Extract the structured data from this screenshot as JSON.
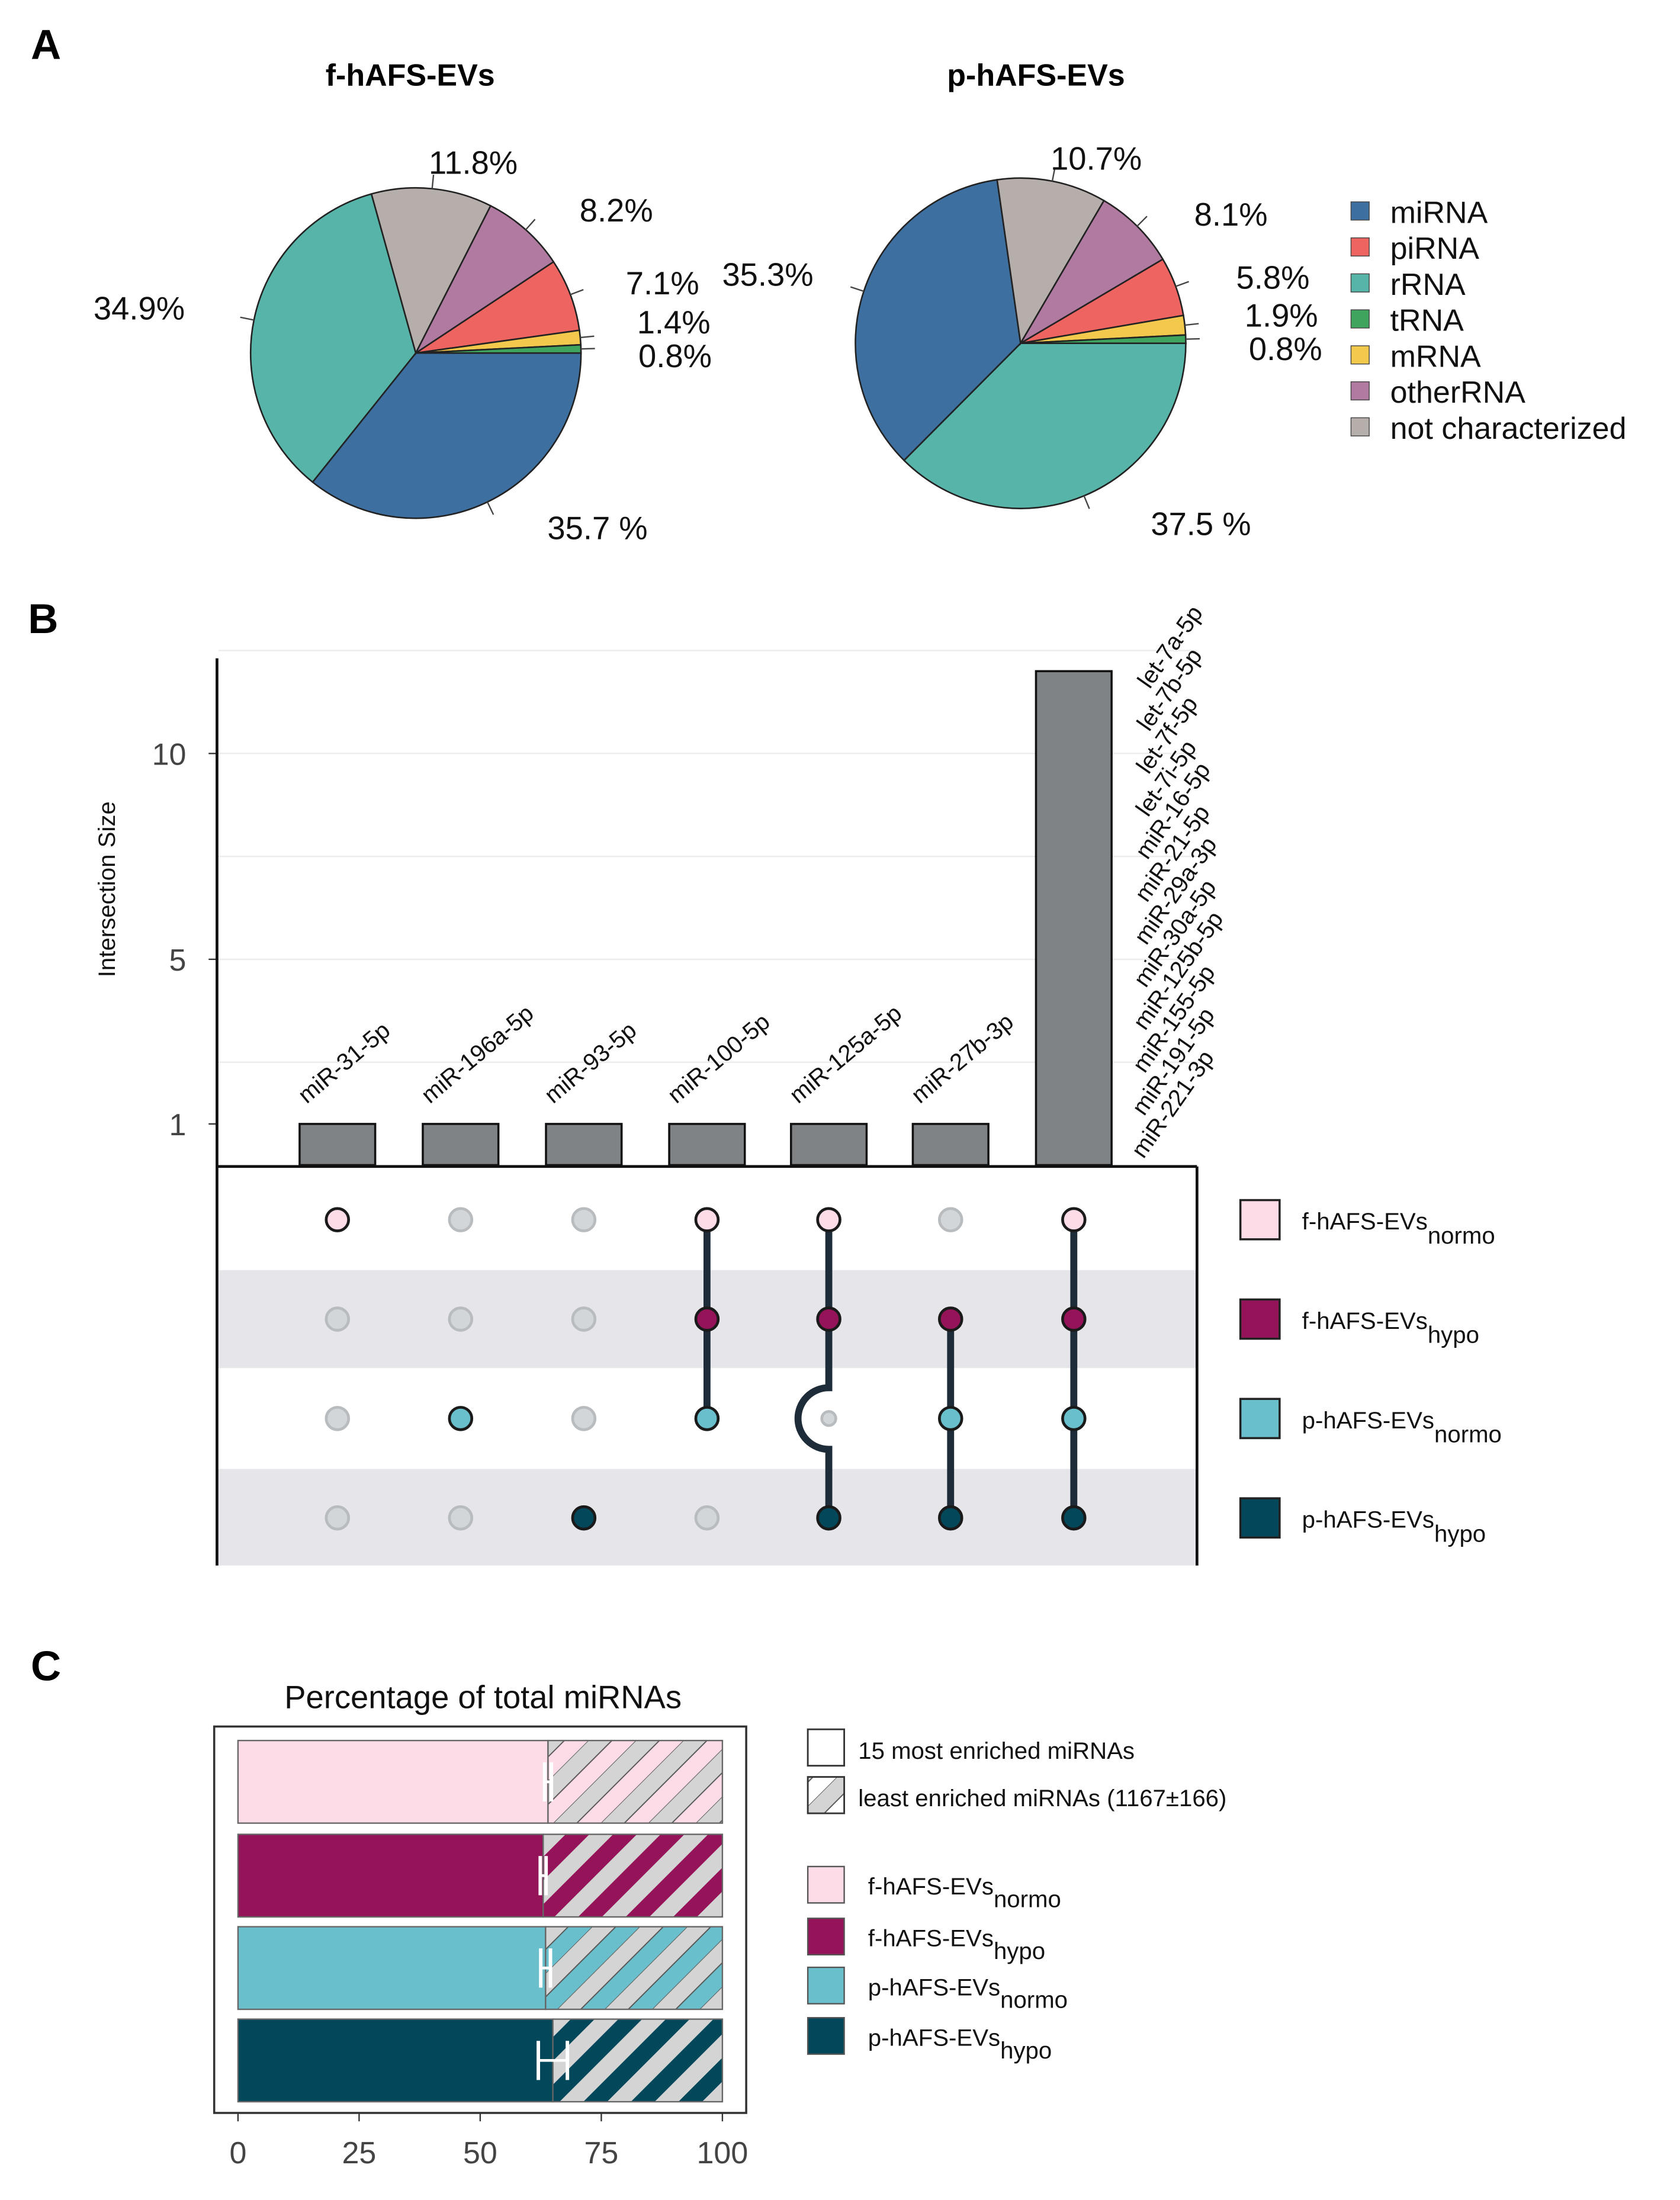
{
  "panels": {
    "a": "A",
    "b": "B",
    "c": "C"
  },
  "colors": {
    "miRNA": "#3d6fa0",
    "piRNA": "#ee6461",
    "rRNA": "#56b5a8",
    "tRNA": "#3fa55e",
    "mRNA": "#f2c94c",
    "otherRNA": "#b07aa1",
    "not characterized": "#b5aeaa",
    "f_normo": "#fddbe7",
    "f_hypo": "#951459",
    "p_normo": "#6abfcc",
    "p_hypo": "#02475a",
    "bar": "#808386",
    "link": "#1e2b38",
    "inactive": "#d3d6d9",
    "hatch": "#d4d4d4"
  },
  "chart_data": [
    {
      "type": "pie",
      "title": "f-hAFS-EVs",
      "slices": [
        {
          "name": "miRNA",
          "value": 35.7,
          "label": "35.7 %"
        },
        {
          "name": "rRNA",
          "value": 34.9,
          "label": "34.9%"
        },
        {
          "name": "not characterized",
          "value": 11.8,
          "label": "11.8%"
        },
        {
          "name": "otherRNA",
          "value": 8.2,
          "label": "8.2%"
        },
        {
          "name": "piRNA",
          "value": 7.1,
          "label": "7.1%"
        },
        {
          "name": "mRNA",
          "value": 1.4,
          "label": "1.4%"
        },
        {
          "name": "tRNA",
          "value": 0.8,
          "label": "0.8%"
        }
      ]
    },
    {
      "type": "pie",
      "title": "p-hAFS-EVs",
      "slices": [
        {
          "name": "rRNA",
          "value": 37.5,
          "label": "37.5 %"
        },
        {
          "name": "miRNA",
          "value": 35.3,
          "label": "35.3%"
        },
        {
          "name": "not characterized",
          "value": 10.7,
          "label": "10.7%"
        },
        {
          "name": "otherRNA",
          "value": 8.1,
          "label": "8.1%"
        },
        {
          "name": "piRNA",
          "value": 5.8,
          "label": "5.8%"
        },
        {
          "name": "mRNA",
          "value": 1.9,
          "label": "1.9%"
        },
        {
          "name": "tRNA",
          "value": 0.8,
          "label": "0.8%"
        }
      ],
      "legend": [
        "miRNA",
        "piRNA",
        "rRNA",
        "tRNA",
        "mRNA",
        "otherRNA",
        "not characterized"
      ],
      "legend_placement": "right"
    },
    {
      "type": "bar",
      "subtype": "upset",
      "ylabel": "Intersection Size",
      "yticks": [
        1,
        5,
        10
      ],
      "ylim": [
        0,
        12.5
      ],
      "sets": [
        {
          "key": "f_normo",
          "name": "f-hAFS-EVs",
          "sub": "normo"
        },
        {
          "key": "f_hypo",
          "name": "f-hAFS-EVs",
          "sub": "hypo"
        },
        {
          "key": "p_normo",
          "name": "p-hAFS-EVs",
          "sub": "normo"
        },
        {
          "key": "p_hypo",
          "name": "p-hAFS-EVs",
          "sub": "hypo"
        }
      ],
      "intersections": [
        {
          "value": 1,
          "members": [
            1,
            0,
            0,
            0
          ],
          "labels": [
            "miR-31-5p"
          ]
        },
        {
          "value": 1,
          "members": [
            0,
            0,
            1,
            0
          ],
          "labels": [
            "miR-196a-5p"
          ]
        },
        {
          "value": 1,
          "members": [
            0,
            0,
            0,
            1
          ],
          "labels": [
            "miR-93-5p"
          ]
        },
        {
          "value": 1,
          "members": [
            1,
            1,
            1,
            0
          ],
          "labels": [
            "miR-100-5p"
          ]
        },
        {
          "value": 1,
          "members": [
            1,
            1,
            0,
            1
          ],
          "labels": [
            "miR-125a-5p"
          ]
        },
        {
          "value": 1,
          "members": [
            0,
            1,
            1,
            1
          ],
          "labels": [
            "miR-27b-3p"
          ]
        },
        {
          "value": 12,
          "members": [
            1,
            1,
            1,
            1
          ],
          "labels": [
            "let-7a-5p",
            "let-7b-5p",
            "let-7f-5p",
            "let-7i-5p",
            "miR-16-5p",
            "miR-21-5p",
            "miR-29a-3p",
            "miR-30a-5p",
            "miR-125b-5p",
            "miR-155-5p",
            "miR-191-5p",
            "miR-221-3p"
          ]
        }
      ]
    },
    {
      "type": "bar",
      "subtype": "stacked-horizontal",
      "title": "Percentage of total miRNAs",
      "xlim": [
        0,
        100
      ],
      "xticks": [
        0,
        25,
        50,
        75,
        100
      ],
      "series": [
        {
          "key": "f_normo",
          "most_enriched": 64,
          "error": 0.7
        },
        {
          "key": "f_hypo",
          "most_enriched": 63,
          "error": 0.6
        },
        {
          "key": "p_normo",
          "most_enriched": 63.5,
          "error": 1
        },
        {
          "key": "p_hypo",
          "most_enriched": 65,
          "error": 3
        }
      ],
      "legend": {
        "most": "15 most enriched miRNAs",
        "least": "least enriched miRNAs (1167±166)"
      }
    }
  ]
}
